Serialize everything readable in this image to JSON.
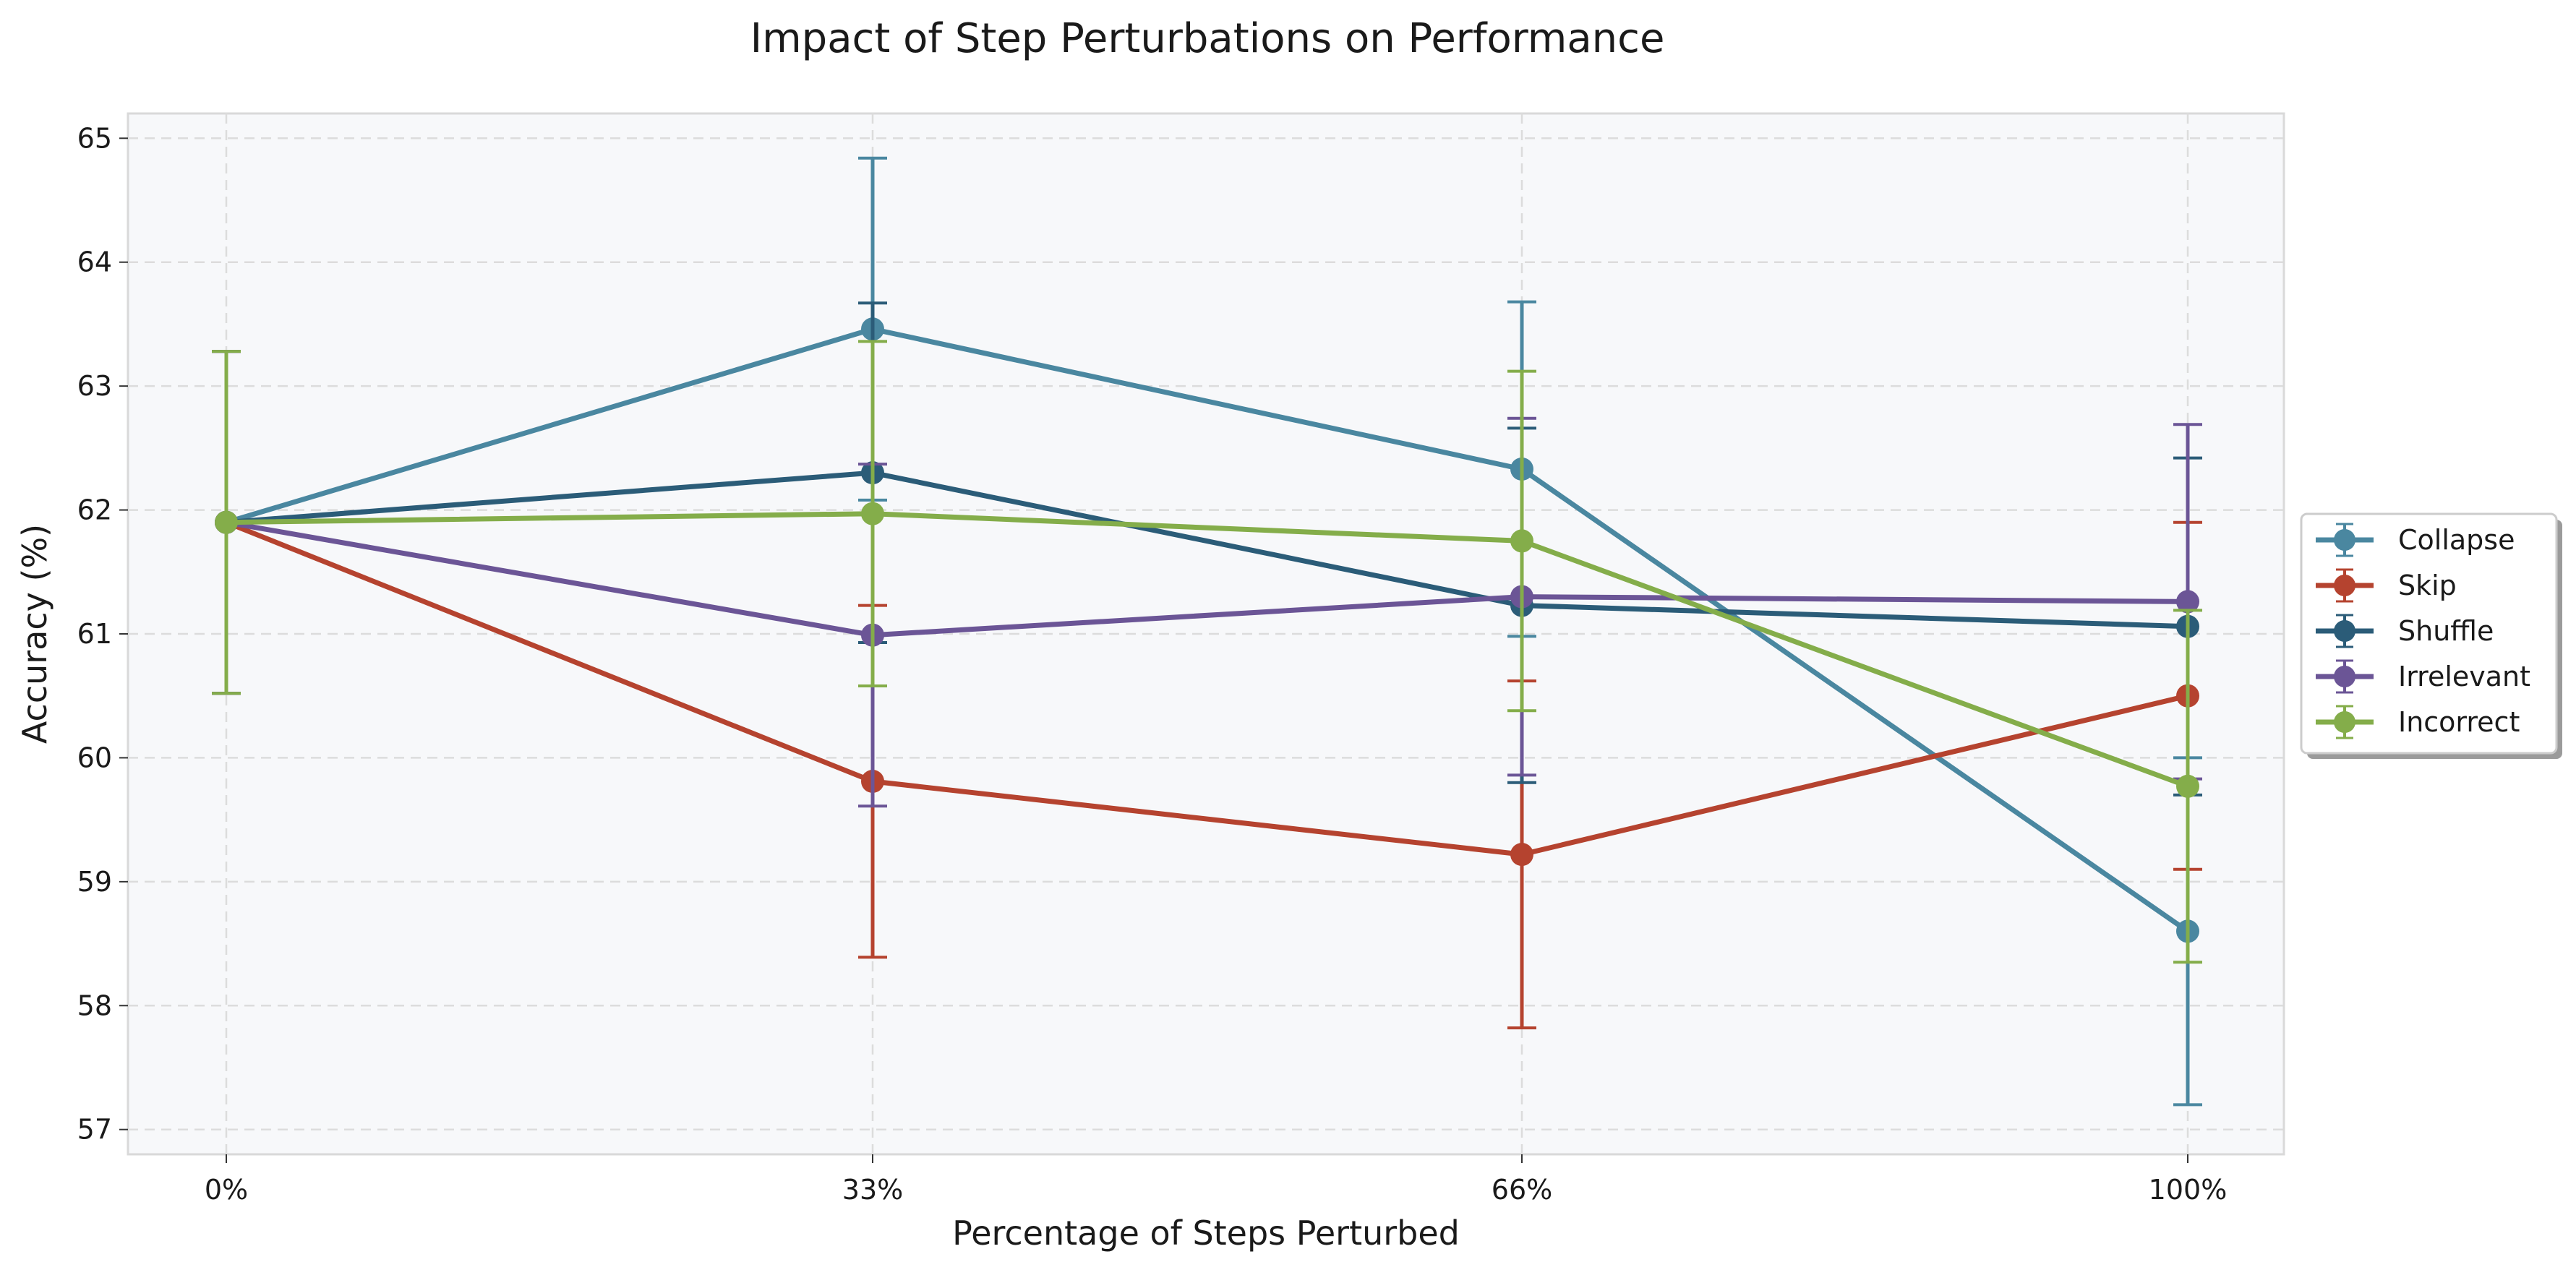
{
  "chart_data": {
    "type": "line",
    "title": "Impact of Step Perturbations on Performance",
    "xlabel": "Percentage of Steps Perturbed",
    "ylabel": "Accuracy (%)",
    "categories": [
      "0%",
      "33%",
      "66%",
      "100%"
    ],
    "ylim": [
      56.8,
      65.2
    ],
    "yticks": [
      57,
      58,
      59,
      60,
      61,
      62,
      63,
      64,
      65
    ],
    "grid": true,
    "legend_position": "right",
    "error_bars": true,
    "series": [
      {
        "name": "Collapse",
        "color": "#4a87a0",
        "values": [
          61.9,
          63.46,
          62.33,
          58.6
        ],
        "errors": [
          1.38,
          1.38,
          1.35,
          1.4
        ]
      },
      {
        "name": "Skip",
        "color": "#b5432f",
        "values": [
          61.9,
          59.81,
          59.22,
          60.5
        ],
        "errors": [
          1.38,
          1.42,
          1.4,
          1.4
        ]
      },
      {
        "name": "Shuffle",
        "color": "#2b5c78",
        "values": [
          61.9,
          62.3,
          61.23,
          61.06
        ],
        "errors": [
          1.38,
          1.37,
          1.43,
          1.36
        ]
      },
      {
        "name": "Irrelevant",
        "color": "#6b5596",
        "values": [
          61.9,
          60.99,
          61.3,
          61.26
        ],
        "errors": [
          1.38,
          1.38,
          1.44,
          1.43
        ]
      },
      {
        "name": "Incorrect",
        "color": "#84ad4a",
        "values": [
          61.9,
          61.97,
          61.75,
          59.77
        ],
        "errors": [
          1.38,
          1.39,
          1.37,
          1.42
        ]
      }
    ]
  }
}
